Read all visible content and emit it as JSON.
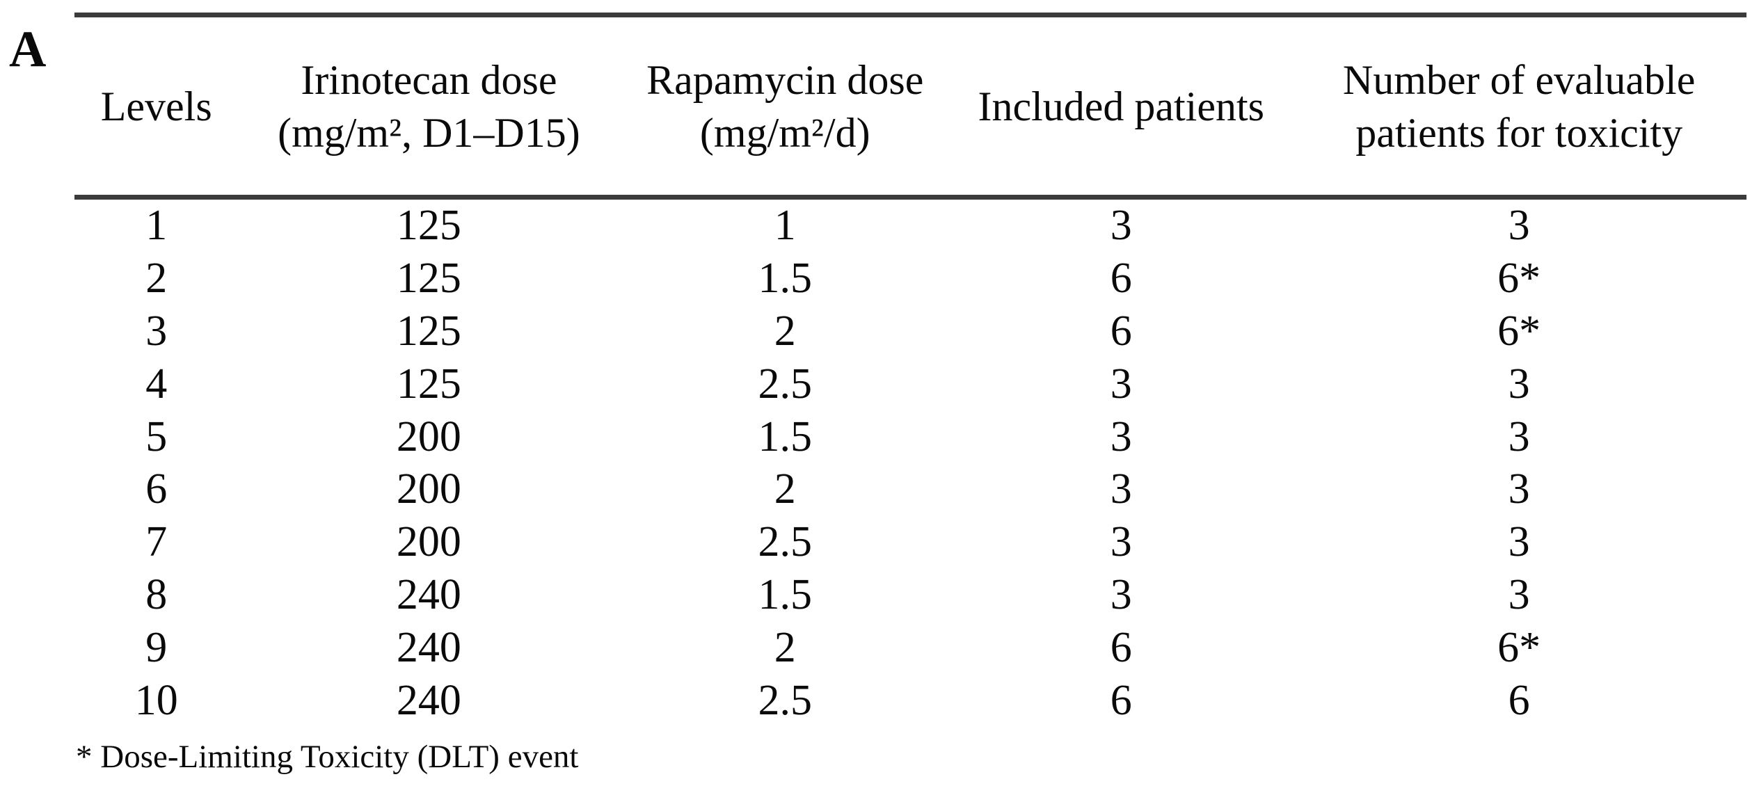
{
  "panel_label": "A",
  "table": {
    "headers": [
      {
        "line1": "Levels",
        "line2": ""
      },
      {
        "line1": "Irinotecan dose",
        "line2": "(mg/m², D1–D15)"
      },
      {
        "line1": "Rapamycin dose",
        "line2": "(mg/m²/d)"
      },
      {
        "line1": "Included patients",
        "line2": ""
      },
      {
        "line1": "Number of evaluable",
        "line2": "patients for toxicity"
      }
    ],
    "rows": [
      [
        "1",
        "125",
        "1",
        "3",
        "3"
      ],
      [
        "2",
        "125",
        "1.5",
        "6",
        "6*"
      ],
      [
        "3",
        "125",
        "2",
        "6",
        "6*"
      ],
      [
        "4",
        "125",
        "2.5",
        "3",
        "3"
      ],
      [
        "5",
        "200",
        "1.5",
        "3",
        "3"
      ],
      [
        "6",
        "200",
        "2",
        "3",
        "3"
      ],
      [
        "7",
        "200",
        "2.5",
        "3",
        "3"
      ],
      [
        "8",
        "240",
        "1.5",
        "3",
        "3"
      ],
      [
        "9",
        "240",
        "2",
        "6",
        "6*"
      ],
      [
        "10",
        "240",
        "2.5",
        "6",
        "6"
      ]
    ],
    "footnote": "* Dose-Limiting Toxicity (DLT) event"
  },
  "colors": {
    "rule": "#3b3b3b",
    "text": "#0a0a0a",
    "background": "#ffffff"
  }
}
